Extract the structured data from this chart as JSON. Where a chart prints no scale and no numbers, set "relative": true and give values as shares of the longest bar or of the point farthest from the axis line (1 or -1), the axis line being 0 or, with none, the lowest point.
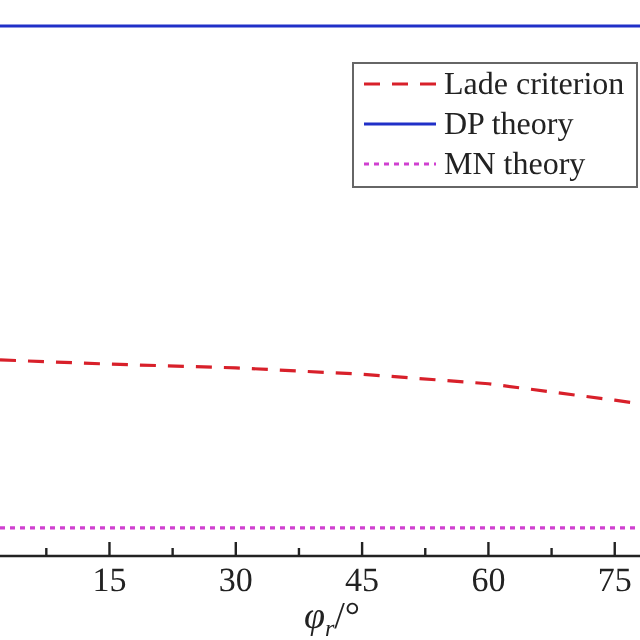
{
  "chart_data": {
    "type": "line",
    "relative": true,
    "xlabel": "φ$_{r}$/°",
    "x": [
      2,
      15,
      30,
      45,
      60,
      75,
      78
    ],
    "xlim": [
      2,
      78
    ],
    "xticks": [
      {
        "value": 7.5,
        "label": null
      },
      15,
      {
        "value": 22.5,
        "label": null
      },
      30,
      {
        "value": 37.5,
        "label": null
      },
      45,
      {
        "value": 52.5,
        "label": null
      },
      60,
      {
        "value": 67.5,
        "label": null
      },
      75
    ],
    "series": [
      {
        "name": "Lade criterion",
        "color": "#d8202a",
        "line_style": "dashed",
        "values": [
          0.37,
          0.362,
          0.355,
          0.343,
          0.325,
          0.294,
          0.287
        ]
      },
      {
        "name": "DP theory",
        "color": "#2030c8",
        "line_style": "solid",
        "values": [
          1,
          1,
          1,
          1,
          1,
          1,
          1
        ]
      },
      {
        "name": "MN theory",
        "color": "#d040d0",
        "line_style": "dotted",
        "values": [
          0.053,
          0.053,
          0.053,
          0.053,
          0.053,
          0.053,
          0.053
        ]
      }
    ],
    "legend": "top right",
    "marker": "none",
    "tick_labels": "x"
  }
}
